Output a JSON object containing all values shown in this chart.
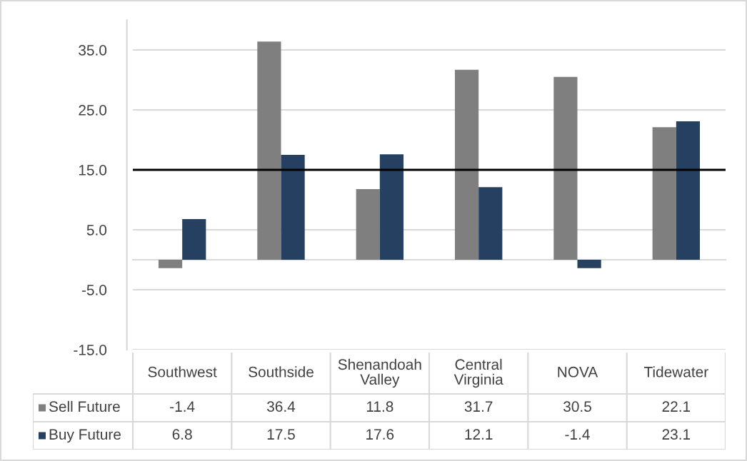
{
  "chart_data": {
    "type": "bar",
    "categories": [
      "Southwest",
      "Southside",
      "Shenandoah Valley",
      "Central Virginia",
      "NOVA",
      "Tidewater"
    ],
    "series": [
      {
        "name": "Sell Future",
        "color": "#7f7f7f",
        "values": [
          -1.4,
          36.4,
          11.8,
          31.7,
          30.5,
          22.1
        ]
      },
      {
        "name": "Buy Future",
        "color": "#264061",
        "values": [
          6.8,
          17.5,
          17.6,
          12.1,
          -1.4,
          23.1
        ]
      }
    ],
    "ylim": [
      -15,
      40
    ],
    "yticks": [
      {
        "value": -15,
        "label": "-15.0"
      },
      {
        "value": -5,
        "label": "-5.0"
      },
      {
        "value": 5,
        "label": "5.0"
      },
      {
        "value": 15,
        "label": "15.0"
      },
      {
        "value": 25,
        "label": "25.0"
      },
      {
        "value": 35,
        "label": "35.0"
      }
    ],
    "grid": "y",
    "legend": "bottom",
    "data_labels": true,
    "ref_lines": [
      {
        "axis": "y",
        "value": 15,
        "color": "#000000"
      }
    ]
  }
}
